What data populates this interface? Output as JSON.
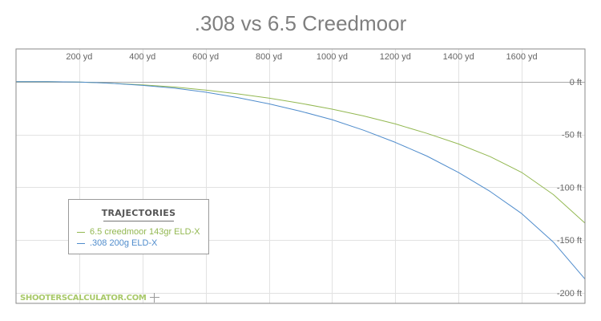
{
  "chart_data": {
    "type": "line",
    "title": ".308 vs 6.5 Creedmoor",
    "xlabel": "",
    "ylabel": "",
    "x_ticks": [
      {
        "value": 200,
        "label": "200 yd"
      },
      {
        "value": 400,
        "label": "400 yd"
      },
      {
        "value": 600,
        "label": "600 yd"
      },
      {
        "value": 800,
        "label": "800 yd"
      },
      {
        "value": 1000,
        "label": "1000 yd"
      },
      {
        "value": 1200,
        "label": "1200 yd"
      },
      {
        "value": 1400,
        "label": "1400 yd"
      },
      {
        "value": 1600,
        "label": "1600 yd"
      }
    ],
    "y_ticks": [
      {
        "value": 0,
        "label": "0 ft"
      },
      {
        "value": -50,
        "label": "-50 ft"
      },
      {
        "value": -100,
        "label": "-100 ft"
      },
      {
        "value": -150,
        "label": "-150 ft"
      },
      {
        "value": -200,
        "label": "-200 ft"
      }
    ],
    "xlim": [
      0,
      1800
    ],
    "ylim": [
      -210,
      31
    ],
    "grid": true,
    "legend": {
      "title": "TRAJECTORIES",
      "position": "bottom-left"
    },
    "series": [
      {
        "name": "6.5 creedmoor 143gr ELD-X",
        "color": "#93b852",
        "x": [
          0,
          100,
          200,
          300,
          400,
          500,
          600,
          700,
          800,
          900,
          1000,
          1100,
          1200,
          1300,
          1400,
          1500,
          1600,
          1700,
          1800
        ],
        "y": [
          0,
          0,
          -0.3,
          -1.5,
          -3,
          -5,
          -8,
          -11.5,
          -15.5,
          -20.5,
          -26,
          -32.5,
          -40,
          -49,
          -59,
          -71,
          -86,
          -107,
          -134
        ]
      },
      {
        "name": ".308 200g ELD-X",
        "color": "#4f8ccc",
        "x": [
          0,
          100,
          200,
          300,
          400,
          500,
          600,
          700,
          800,
          900,
          1000,
          1100,
          1200,
          1300,
          1400,
          1500,
          1600,
          1700,
          1800
        ],
        "y": [
          0,
          0,
          -0.3,
          -1.5,
          -3.5,
          -6,
          -10,
          -15,
          -21,
          -28,
          -36,
          -46,
          -57.5,
          -70.5,
          -86,
          -104,
          -125,
          -152,
          -187
        ]
      }
    ]
  },
  "watermark": "SHOOTERSCALCULATOR.COM"
}
